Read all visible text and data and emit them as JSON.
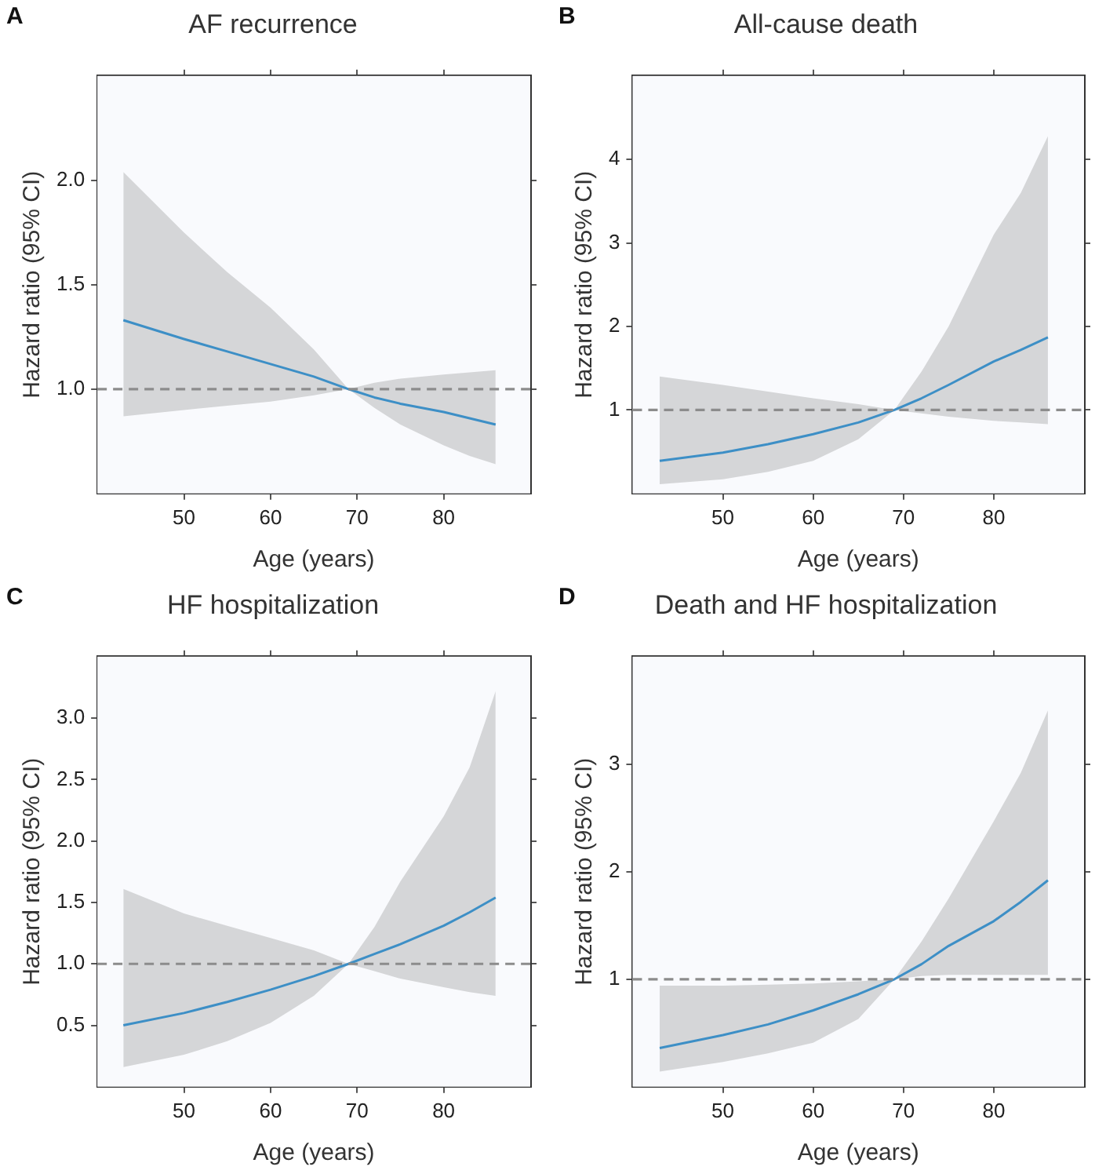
{
  "chart_data": [
    {
      "type": "line",
      "title": "AF recurrence",
      "xlabel": "Age (years)",
      "ylabel": "Hazard ratio (95% CI)",
      "annotations": [
        "A"
      ],
      "marker": "none",
      "line_style": "solid",
      "x": [
        43,
        50,
        55,
        60,
        65,
        69,
        72,
        75,
        80,
        83,
        86
      ],
      "series": [
        {
          "color": "#3d8fc6",
          "values": [
            1.33,
            1.24,
            1.18,
            1.12,
            1.06,
            1.0,
            0.96,
            0.93,
            0.89,
            0.86,
            0.83
          ],
          "upper": [
            2.04,
            1.75,
            1.56,
            1.39,
            1.19,
            1.0,
            1.03,
            1.05,
            1.07,
            1.08,
            1.09
          ],
          "lower": [
            0.87,
            0.9,
            0.92,
            0.94,
            0.97,
            1.0,
            0.91,
            0.83,
            0.73,
            0.68,
            0.64
          ]
        }
      ],
      "ref_lines": [
        {
          "axis": "y",
          "value": 1,
          "color": "#8c8c8c",
          "line_style": "dashed"
        }
      ],
      "xlim": [
        40,
        90
      ],
      "xticks": [
        50,
        60,
        70,
        80
      ],
      "ylim": [
        0.5,
        2.5
      ],
      "yticks": [
        {
          "value": 1,
          "label": "1.0"
        },
        1.5,
        {
          "value": 2,
          "label": "2.0"
        }
      ]
    },
    {
      "type": "line",
      "title": "All-cause death",
      "xlabel": "Age (years)",
      "ylabel": "Hazard ratio (95% CI)",
      "annotations": [
        "B"
      ],
      "marker": "none",
      "line_style": "solid",
      "x": [
        43,
        50,
        55,
        60,
        65,
        69,
        72,
        75,
        80,
        83,
        86
      ],
      "series": [
        {
          "color": "#3d8fc6",
          "values": [
            0.39,
            0.49,
            0.59,
            0.71,
            0.85,
            1.0,
            1.14,
            1.3,
            1.58,
            1.72,
            1.87
          ],
          "upper": [
            1.4,
            1.3,
            1.22,
            1.14,
            1.07,
            1.0,
            1.46,
            2.0,
            3.1,
            3.6,
            4.28
          ],
          "lower": [
            0.11,
            0.17,
            0.26,
            0.39,
            0.65,
            1.0,
            0.96,
            0.92,
            0.87,
            0.85,
            0.83
          ]
        }
      ],
      "ref_lines": [
        {
          "axis": "y",
          "value": 1,
          "color": "#8c8c8c",
          "line_style": "dashed"
        }
      ],
      "xlim": [
        40,
        90
      ],
      "xticks": [
        50,
        60,
        70,
        80
      ],
      "ylim": [
        0,
        5
      ],
      "yticks": [
        1,
        2,
        3,
        4
      ]
    },
    {
      "type": "line",
      "title": "HF hospitalization",
      "xlabel": "Age (years)",
      "ylabel": "Hazard ratio (95% CI)",
      "annotations": [
        "C"
      ],
      "marker": "none",
      "line_style": "solid",
      "x": [
        43,
        50,
        55,
        60,
        65,
        69,
        72,
        75,
        80,
        83,
        86
      ],
      "series": [
        {
          "color": "#3d8fc6",
          "values": [
            0.5,
            0.6,
            0.69,
            0.79,
            0.9,
            1.0,
            1.08,
            1.16,
            1.31,
            1.42,
            1.54
          ],
          "upper": [
            1.61,
            1.41,
            1.31,
            1.21,
            1.11,
            1.0,
            1.3,
            1.67,
            2.2,
            2.6,
            3.22
          ],
          "lower": [
            0.16,
            0.26,
            0.37,
            0.52,
            0.74,
            1.0,
            0.94,
            0.88,
            0.81,
            0.77,
            0.74
          ]
        }
      ],
      "ref_lines": [
        {
          "axis": "y",
          "value": 1,
          "color": "#8c8c8c",
          "line_style": "dashed"
        }
      ],
      "xlim": [
        40,
        90
      ],
      "xticks": [
        50,
        60,
        70,
        80
      ],
      "ylim": [
        0,
        3.5
      ],
      "yticks": [
        0.5,
        {
          "value": 1,
          "label": "1.0"
        },
        1.5,
        {
          "value": 2,
          "label": "2.0"
        },
        2.5,
        {
          "value": 3,
          "label": "3.0"
        }
      ]
    },
    {
      "type": "line",
      "title": "Death and HF hospitalization",
      "xlabel": "Age (years)",
      "ylabel": "Hazard ratio (95% CI)",
      "annotations": [
        "D"
      ],
      "marker": "none",
      "line_style": "solid",
      "x": [
        43,
        50,
        55,
        60,
        65,
        69,
        72,
        75,
        80,
        83,
        86
      ],
      "series": [
        {
          "color": "#3d8fc6",
          "values": [
            0.36,
            0.48,
            0.58,
            0.71,
            0.86,
            1.0,
            1.14,
            1.31,
            1.54,
            1.72,
            1.92
          ],
          "upper": [
            0.94,
            0.94,
            0.95,
            0.96,
            0.98,
            1.0,
            1.35,
            1.75,
            2.47,
            2.92,
            3.5
          ],
          "lower": [
            0.14,
            0.23,
            0.31,
            0.41,
            0.63,
            1.0,
            1.03,
            1.04,
            1.04,
            1.04,
            1.04
          ]
        }
      ],
      "ref_lines": [
        {
          "axis": "y",
          "value": 1,
          "color": "#8c8c8c",
          "line_style": "dashed"
        }
      ],
      "xlim": [
        40,
        90
      ],
      "xticks": [
        50,
        60,
        70,
        80
      ],
      "ylim": [
        0,
        4
      ],
      "yticks": [
        1,
        2,
        3
      ]
    }
  ]
}
